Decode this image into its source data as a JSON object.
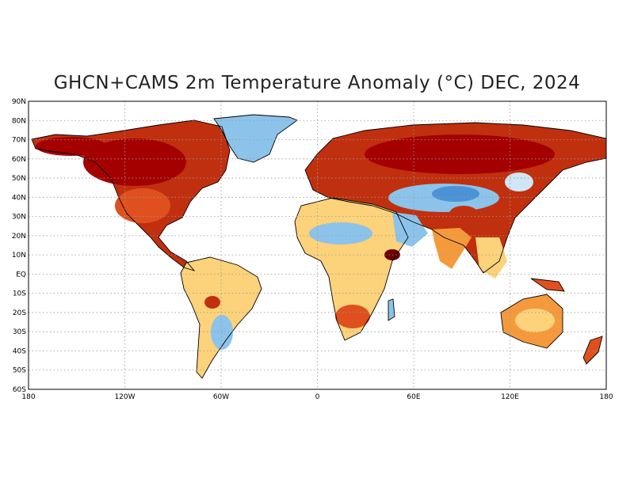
{
  "title": "GHCN+CAMS 2m Temperature Anomaly (°C) DEC, 2024",
  "lat_ticks": [
    "90N",
    "80N",
    "70N",
    "60N",
    "50N",
    "40N",
    "30N",
    "20N",
    "10N",
    "EQ",
    "10S",
    "20S",
    "30S",
    "40S",
    "50S",
    "60S"
  ],
  "lon_ticks": [
    "180",
    "120W",
    "60W",
    "0",
    "60E",
    "120E",
    "180"
  ],
  "colors": {
    "very_warm": "#a50000",
    "warm": "#e0501e",
    "mild_warm": "#f59a3c",
    "slight_warm": "#fcd27a",
    "neutral": "#fff3c0",
    "slight_cool": "#cfe6f5",
    "cool": "#8cc3ea",
    "very_cool": "#4b93d6",
    "grid": "#999999",
    "coast": "#000000"
  }
}
